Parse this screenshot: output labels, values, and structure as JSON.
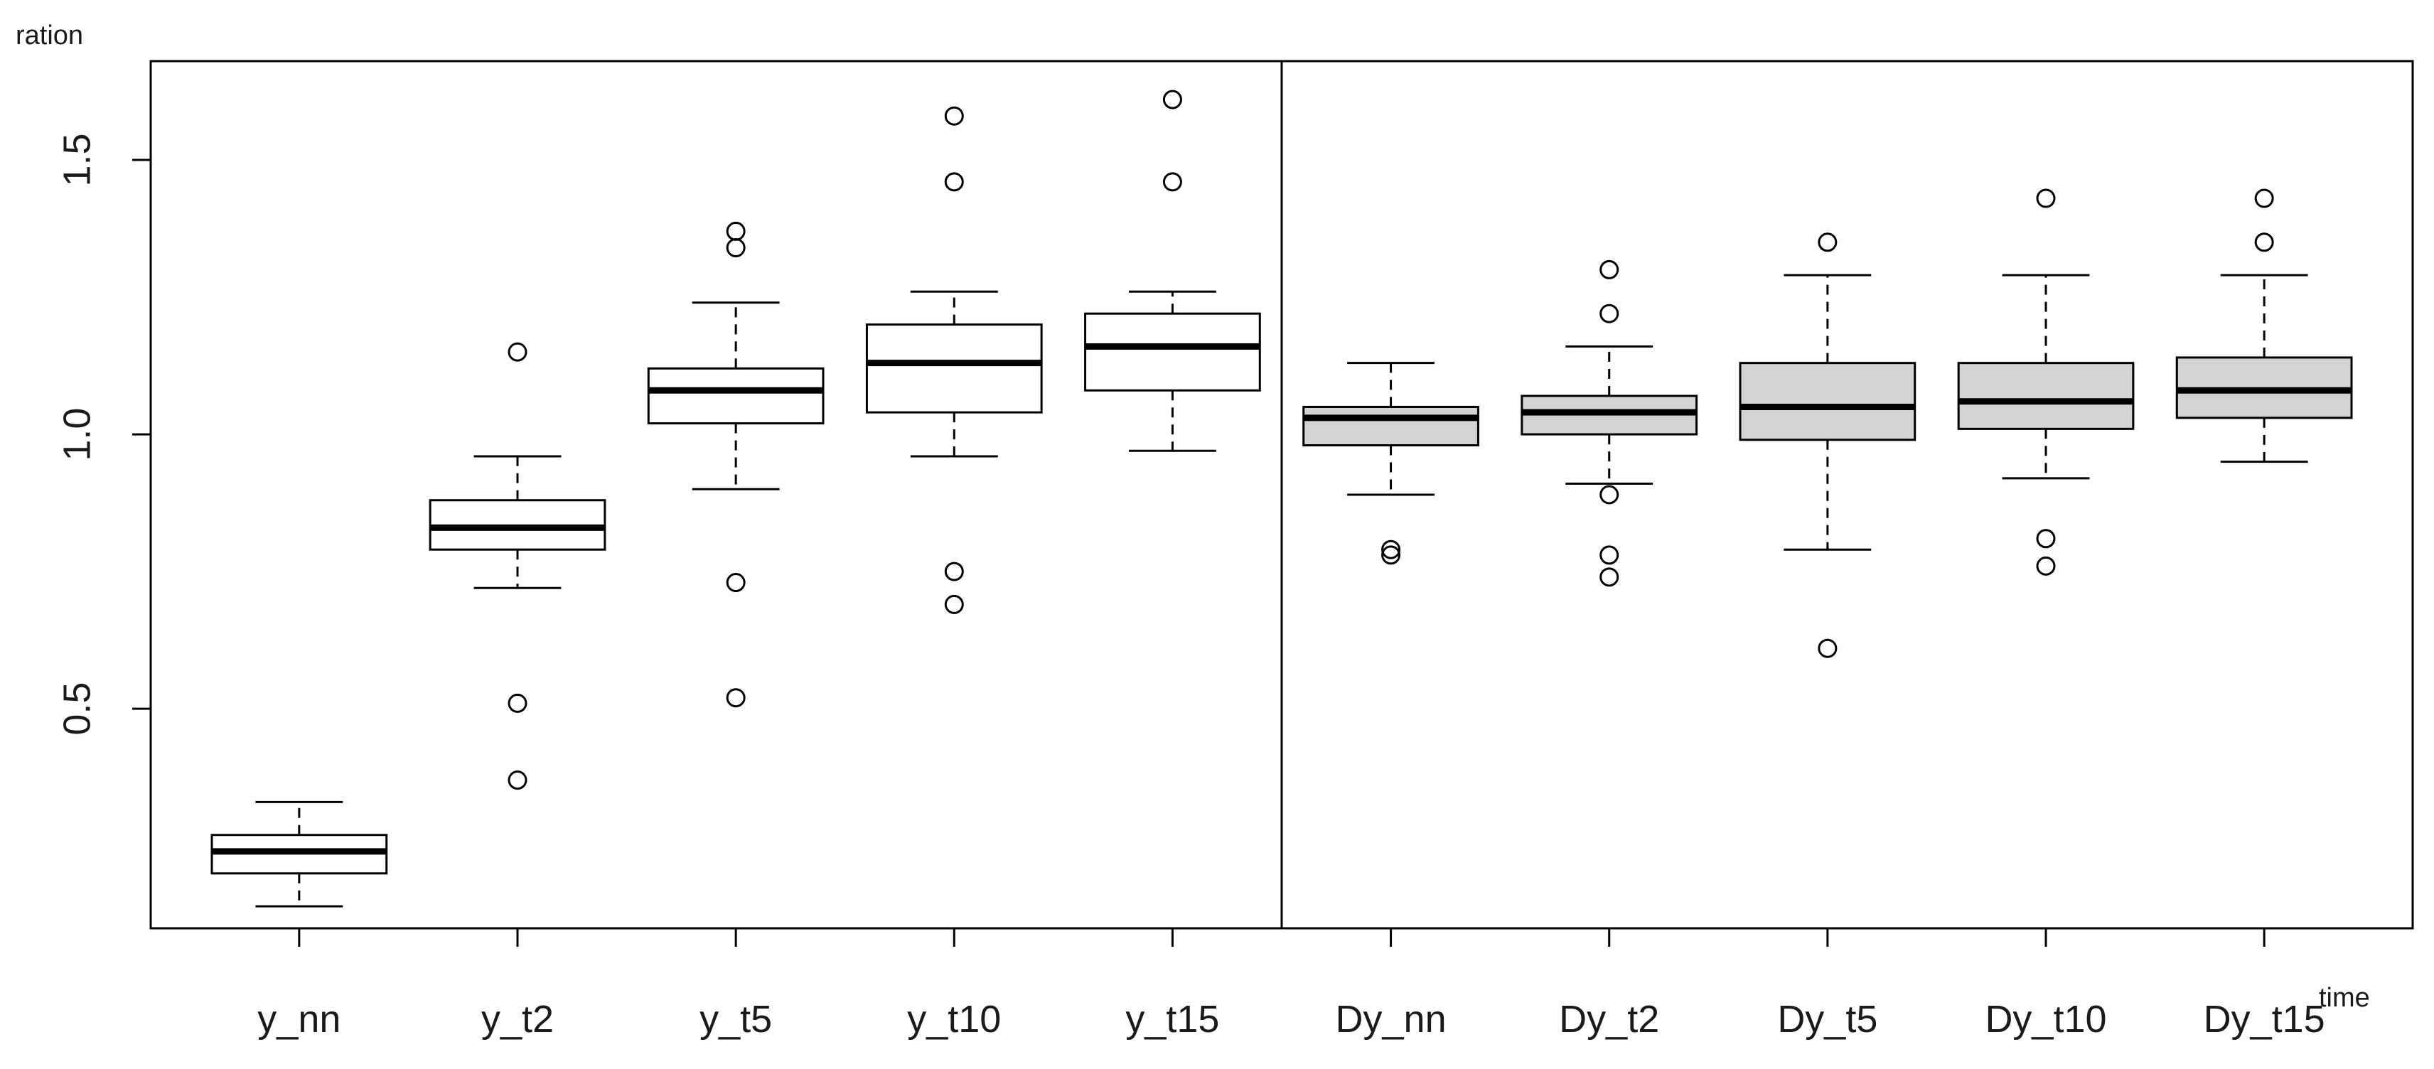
{
  "chart_data": {
    "type": "boxplot",
    "title": "",
    "xlabel": "time",
    "ylabel": "ration",
    "ylim": [
      0.1,
      1.68
    ],
    "y_ticks": [
      {
        "value": 0.5,
        "label": "0.5"
      },
      {
        "value": 1.0,
        "label": "1.0"
      },
      {
        "value": 1.5,
        "label": "1.5"
      }
    ],
    "grid": false,
    "legend": "none",
    "categories": [
      "y_nn",
      "y_t2",
      "y_t5",
      "y_t10",
      "y_t15",
      "Dy_nn",
      "Dy_t2",
      "Dy_t5",
      "Dy_t10",
      "Dy_t15"
    ],
    "boxes": [
      {
        "label": "y_nn",
        "group": "y",
        "whisker_low": 0.14,
        "q1": 0.2,
        "median": 0.24,
        "q3": 0.27,
        "whisker_high": 0.33,
        "outliers": []
      },
      {
        "label": "y_t2",
        "group": "y",
        "whisker_low": 0.72,
        "q1": 0.79,
        "median": 0.83,
        "q3": 0.88,
        "whisker_high": 0.96,
        "outliers": [
          1.15,
          0.51,
          0.37
        ]
      },
      {
        "label": "y_t5",
        "group": "y",
        "whisker_low": 0.9,
        "q1": 1.02,
        "median": 1.08,
        "q3": 1.12,
        "whisker_high": 1.24,
        "outliers": [
          1.37,
          1.34,
          0.73,
          0.52
        ]
      },
      {
        "label": "y_t10",
        "group": "y",
        "whisker_low": 0.96,
        "q1": 1.04,
        "median": 1.13,
        "q3": 1.2,
        "whisker_high": 1.26,
        "outliers": [
          1.58,
          1.46,
          0.75,
          0.69
        ]
      },
      {
        "label": "y_t15",
        "group": "y",
        "whisker_low": 0.97,
        "q1": 1.08,
        "median": 1.16,
        "q3": 1.22,
        "whisker_high": 1.26,
        "outliers": [
          1.61,
          1.46
        ]
      },
      {
        "label": "Dy_nn",
        "group": "Dy",
        "whisker_low": 0.89,
        "q1": 0.98,
        "median": 1.03,
        "q3": 1.05,
        "whisker_high": 1.13,
        "outliers": [
          0.79,
          0.78
        ]
      },
      {
        "label": "Dy_t2",
        "group": "Dy",
        "whisker_low": 0.91,
        "q1": 1.0,
        "median": 1.04,
        "q3": 1.07,
        "whisker_high": 1.16,
        "outliers": [
          1.3,
          1.22,
          0.89,
          0.78,
          0.74
        ]
      },
      {
        "label": "Dy_t5",
        "group": "Dy",
        "whisker_low": 0.79,
        "q1": 0.99,
        "median": 1.05,
        "q3": 1.13,
        "whisker_high": 1.29,
        "outliers": [
          1.35,
          0.61
        ]
      },
      {
        "label": "Dy_t10",
        "group": "Dy",
        "whisker_low": 0.92,
        "q1": 1.01,
        "median": 1.06,
        "q3": 1.13,
        "whisker_high": 1.29,
        "outliers": [
          1.43,
          0.81,
          0.76
        ]
      },
      {
        "label": "Dy_t15",
        "group": "Dy",
        "whisker_low": 0.95,
        "q1": 1.03,
        "median": 1.08,
        "q3": 1.14,
        "whisker_high": 1.29,
        "outliers": [
          1.43,
          1.35
        ]
      }
    ],
    "group_fill": {
      "y": "#ffffff",
      "Dy": "#d3d3d3"
    },
    "separator_between": [
      "y_t15",
      "Dy_nn"
    ],
    "line_color": "#000000"
  }
}
